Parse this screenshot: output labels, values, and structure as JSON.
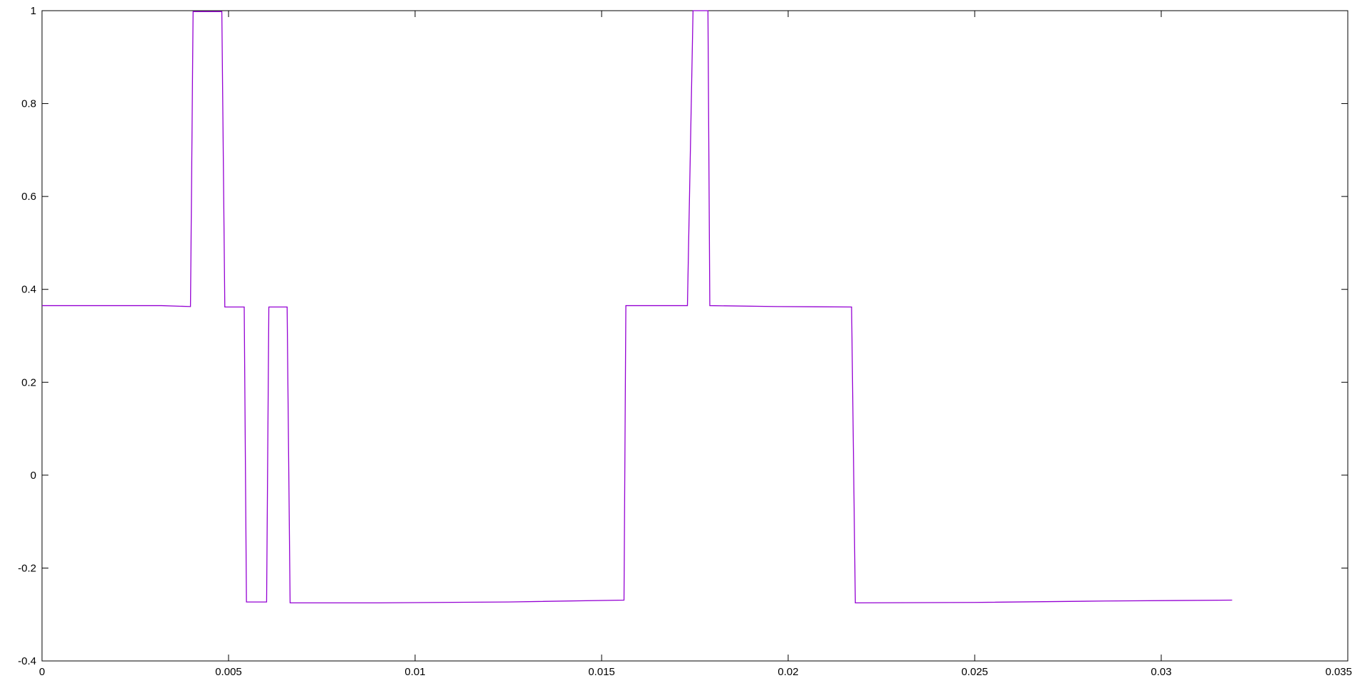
{
  "chart_data": {
    "type": "line",
    "title": "",
    "xlabel": "",
    "ylabel": "",
    "xlim": [
      0,
      0.035
    ],
    "ylim": [
      -0.4,
      1
    ],
    "grid": false,
    "legend": "none",
    "x_ticks": [
      "0",
      "0.005",
      "0.01",
      "0.015",
      "0.02",
      "0.025",
      "0.03",
      "0.035"
    ],
    "y_ticks": [
      "-0.4",
      "-0.2",
      "0",
      "0.2",
      "0.4",
      "0.6",
      "0.8",
      "1"
    ],
    "x_tick_values": [
      0,
      0.005,
      0.01,
      0.015,
      0.02,
      0.025,
      0.03,
      0.035
    ],
    "y_tick_values": [
      -0.4,
      -0.2,
      0,
      0.2,
      0.4,
      0.6,
      0.8,
      1
    ],
    "series": [
      {
        "color": "#9400d3",
        "points": [
          [
            0,
            0.365
          ],
          [
            0.0032,
            0.365
          ],
          [
            0.00398,
            0.363
          ],
          [
            0.00405,
            0.998
          ],
          [
            0.00482,
            0.998
          ],
          [
            0.0049,
            0.362
          ],
          [
            0.00542,
            0.362
          ],
          [
            0.00548,
            -0.273
          ],
          [
            0.00602,
            -0.273
          ],
          [
            0.00608,
            0.362
          ],
          [
            0.00657,
            0.362
          ],
          [
            0.00665,
            -0.275
          ],
          [
            0.009,
            -0.275
          ],
          [
            0.0125,
            -0.273
          ],
          [
            0.0156,
            -0.269
          ],
          [
            0.01565,
            0.365
          ],
          [
            0.0173,
            0.365
          ],
          [
            0.01745,
            1.0
          ],
          [
            0.01785,
            1.0
          ],
          [
            0.0179,
            0.365
          ],
          [
            0.0197,
            0.363
          ],
          [
            0.0217,
            0.362
          ],
          [
            0.0218,
            -0.275
          ],
          [
            0.025,
            -0.274
          ],
          [
            0.0285,
            -0.271
          ],
          [
            0.0319,
            -0.269
          ]
        ]
      }
    ]
  }
}
